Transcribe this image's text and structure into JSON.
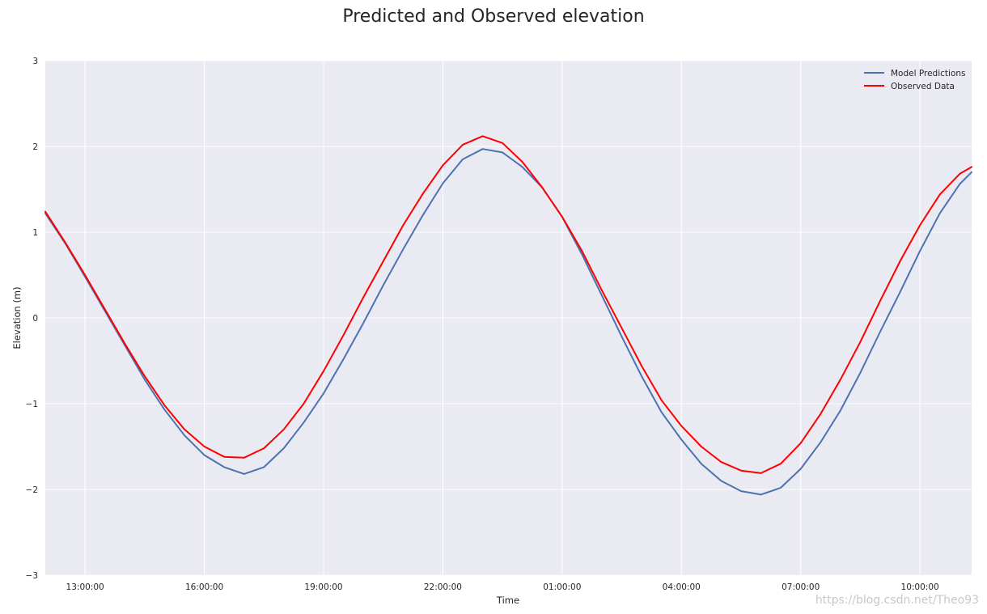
{
  "chart_data": {
    "type": "line",
    "title": "Predicted and Observed elevation",
    "xlabel": "Time",
    "ylabel": "Elevation (m)",
    "ylim": [
      -3,
      3
    ],
    "yticks": [
      -3,
      -2,
      -1,
      0,
      1,
      2,
      3
    ],
    "ytick_labels": [
      "−3",
      "−2",
      "−1",
      "0",
      "1",
      "2",
      "3"
    ],
    "xlim_hours": [
      12.0,
      35.3
    ],
    "xticks": [
      {
        "hour": 13,
        "label": "13:00:00"
      },
      {
        "hour": 16,
        "label": "16:00:00"
      },
      {
        "hour": 19,
        "label": "19:00:00"
      },
      {
        "hour": 22,
        "label": "22:00:00"
      },
      {
        "hour": 25,
        "label": "01:00:00"
      },
      {
        "hour": 28,
        "label": "04:00:00"
      },
      {
        "hour": 31,
        "label": "07:00:00"
      },
      {
        "hour": 34,
        "label": "10:00:00"
      }
    ],
    "grid": true,
    "legend_position": "top-right",
    "series": [
      {
        "name": "Model Predictions",
        "color": "#4c72b0",
        "x": [
          12.0,
          12.5,
          13.0,
          13.5,
          14.0,
          14.5,
          15.0,
          15.5,
          16.0,
          16.5,
          17.0,
          17.5,
          18.0,
          18.5,
          19.0,
          19.5,
          20.0,
          20.5,
          21.0,
          21.5,
          22.0,
          22.5,
          23.0,
          23.5,
          24.0,
          24.5,
          25.0,
          25.5,
          26.0,
          26.5,
          27.0,
          27.5,
          28.0,
          28.5,
          29.0,
          29.5,
          30.0,
          30.5,
          31.0,
          31.5,
          32.0,
          32.5,
          33.0,
          33.5,
          34.0,
          34.5,
          35.0,
          35.3
        ],
        "y": [
          1.22,
          0.87,
          0.48,
          0.08,
          -0.32,
          -0.72,
          -1.07,
          -1.37,
          -1.6,
          -1.74,
          -1.82,
          -1.74,
          -1.52,
          -1.22,
          -0.88,
          -0.48,
          -0.06,
          0.38,
          0.8,
          1.2,
          1.57,
          1.85,
          1.97,
          1.93,
          1.76,
          1.52,
          1.18,
          0.74,
          0.26,
          -0.22,
          -0.68,
          -1.1,
          -1.42,
          -1.7,
          -1.9,
          -2.02,
          -2.06,
          -1.98,
          -1.76,
          -1.45,
          -1.08,
          -0.64,
          -0.16,
          0.3,
          0.78,
          1.22,
          1.56,
          1.7
        ]
      },
      {
        "name": "Observed Data",
        "color": "#ff0000",
        "x": [
          12.0,
          12.5,
          13.0,
          13.5,
          14.0,
          14.5,
          15.0,
          15.5,
          16.0,
          16.5,
          17.0,
          17.5,
          18.0,
          18.5,
          19.0,
          19.5,
          20.0,
          20.5,
          21.0,
          21.5,
          22.0,
          22.5,
          23.0,
          23.5,
          24.0,
          24.5,
          25.0,
          25.5,
          26.0,
          26.5,
          27.0,
          27.5,
          28.0,
          28.5,
          29.0,
          29.5,
          30.0,
          30.5,
          31.0,
          31.5,
          32.0,
          32.5,
          33.0,
          33.5,
          34.0,
          34.5,
          35.0,
          35.3
        ],
        "y": [
          1.24,
          0.88,
          0.5,
          0.1,
          -0.3,
          -0.68,
          -1.02,
          -1.3,
          -1.5,
          -1.62,
          -1.63,
          -1.52,
          -1.3,
          -1.0,
          -0.62,
          -0.2,
          0.24,
          0.66,
          1.08,
          1.45,
          1.78,
          2.02,
          2.12,
          2.04,
          1.82,
          1.52,
          1.18,
          0.78,
          0.32,
          -0.12,
          -0.56,
          -0.96,
          -1.26,
          -1.5,
          -1.68,
          -1.78,
          -1.81,
          -1.7,
          -1.46,
          -1.12,
          -0.72,
          -0.28,
          0.2,
          0.66,
          1.08,
          1.44,
          1.68,
          1.76
        ]
      }
    ]
  },
  "watermark": "https://blog.csdn.net/Theo93"
}
